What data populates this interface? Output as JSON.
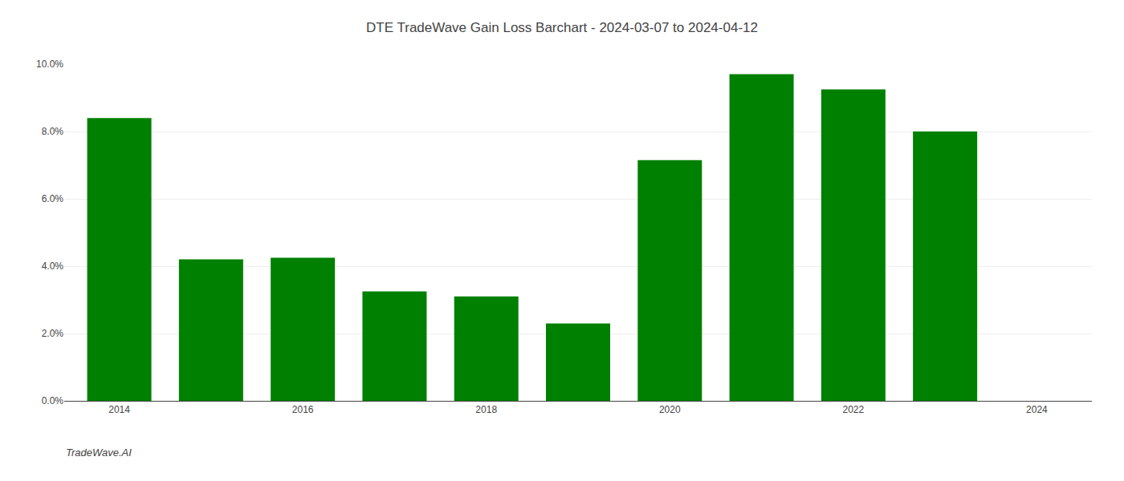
{
  "chart_data": {
    "type": "bar",
    "title": "DTE TradeWave Gain Loss Barchart - 2024-03-07 to 2024-04-12",
    "annotations": [
      {
        "text": "TradeWave.AI"
      }
    ],
    "x": [
      2014,
      2015,
      2016,
      2017,
      2018,
      2019,
      2020,
      2021,
      2022,
      2023
    ],
    "values": [
      0.084,
      0.042,
      0.0425,
      0.0325,
      0.031,
      0.023,
      0.0715,
      0.097,
      0.0925,
      0.08
    ],
    "color": "#008000",
    "xlim": [
      2013.4,
      2024.6
    ],
    "xticks": [
      2014,
      2016,
      2018,
      2020,
      2022,
      2024
    ],
    "ylim": [
      0.0,
      0.1
    ],
    "yticks": [
      {
        "value": 0.0,
        "label": "0.0%"
      },
      {
        "value": 0.02,
        "label": "2.0%"
      },
      {
        "value": 0.04,
        "label": "4.0%"
      },
      {
        "value": 0.06,
        "label": "6.0%"
      },
      {
        "value": 0.08,
        "label": "8.0%"
      },
      {
        "value": 0.1,
        "label": "10.0%"
      }
    ],
    "grid": true
  }
}
